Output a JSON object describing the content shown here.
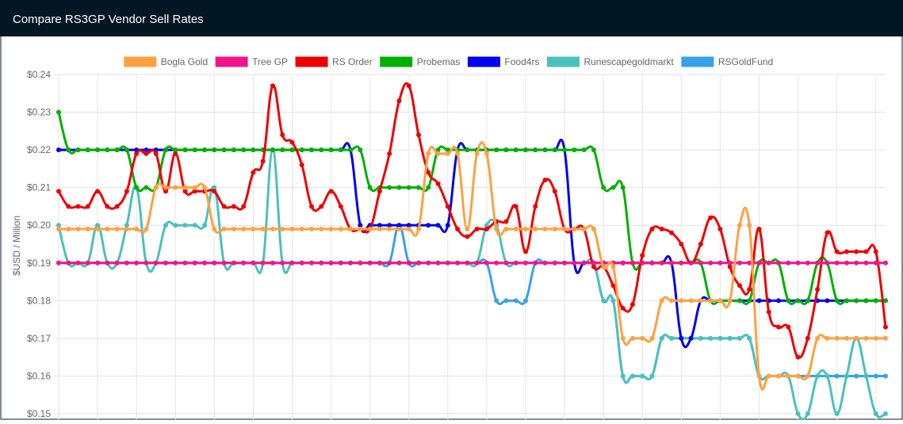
{
  "chart_data": {
    "type": "line",
    "title": "Compare RS3GP Vendor Sell Rates",
    "y_label": "$USD / Million",
    "ylim": [
      0.15,
      0.24
    ],
    "yticks": [
      {
        "value": 0.15,
        "label": "$0.15"
      },
      {
        "value": 0.16,
        "label": "$0.16"
      },
      {
        "value": 0.17,
        "label": "$0.17"
      },
      {
        "value": 0.18,
        "label": "$0.18"
      },
      {
        "value": 0.19,
        "label": "$0.19"
      },
      {
        "value": 0.2,
        "label": "$0.20"
      },
      {
        "value": 0.21,
        "label": "$0.21"
      },
      {
        "value": 0.22,
        "label": "$0.22"
      },
      {
        "value": 0.23,
        "label": "$0.23"
      },
      {
        "value": 0.24,
        "label": "$0.24"
      }
    ],
    "grid": true,
    "legend": "top",
    "series": [
      {
        "name": "Bogla Gold",
        "color": "#ffa040",
        "values": [
          0.199,
          0.199,
          0.199,
          0.199,
          0.199,
          0.199,
          0.199,
          0.199,
          0.199,
          0.199,
          0.21,
          0.21,
          0.21,
          0.21,
          0.21,
          0.21,
          0.199,
          0.199,
          0.199,
          0.199,
          0.199,
          0.199,
          0.199,
          0.199,
          0.199,
          0.199,
          0.199,
          0.199,
          0.199,
          0.199,
          0.199,
          0.199,
          0.199,
          0.199,
          0.199,
          0.199,
          0.199,
          0.199,
          0.219,
          0.219,
          0.219,
          0.219,
          0.199,
          0.219,
          0.219,
          0.199,
          0.199,
          0.199,
          0.199,
          0.199,
          0.199,
          0.199,
          0.199,
          0.199,
          0.199,
          0.199,
          0.189,
          0.189,
          0.17,
          0.17,
          0.17,
          0.17,
          0.18,
          0.18,
          0.18,
          0.18,
          0.18,
          0.18,
          0.18,
          0.18,
          0.2,
          0.2,
          0.16,
          0.16,
          0.16,
          0.16,
          0.16,
          0.16,
          0.17,
          0.17,
          0.17,
          0.17,
          0.17,
          0.17,
          0.17,
          0.17
        ]
      },
      {
        "name": "Tree GP",
        "color": "#f0168a",
        "values": [
          0.19,
          0.19,
          0.19,
          0.19,
          0.19,
          0.19,
          0.19,
          0.19,
          0.19,
          0.19,
          0.19,
          0.19,
          0.19,
          0.19,
          0.19,
          0.19,
          0.19,
          0.19,
          0.19,
          0.19,
          0.19,
          0.19,
          0.19,
          0.19,
          0.19,
          0.19,
          0.19,
          0.19,
          0.19,
          0.19,
          0.19,
          0.19,
          0.19,
          0.19,
          0.19,
          0.19,
          0.19,
          0.19,
          0.19,
          0.19,
          0.19,
          0.19,
          0.19,
          0.19,
          0.19,
          0.19,
          0.19,
          0.19,
          0.19,
          0.19,
          0.19,
          0.19,
          0.19,
          0.19,
          0.19,
          0.19,
          0.19,
          0.19,
          0.19,
          0.19,
          0.19,
          0.19,
          0.19,
          0.19,
          0.19,
          0.19,
          0.19,
          0.19,
          0.19,
          0.19,
          0.19,
          0.19,
          0.19,
          0.19,
          0.19,
          0.19,
          0.19,
          0.19,
          0.19,
          0.19,
          0.19,
          0.19,
          0.19,
          0.19,
          0.19,
          0.19
        ]
      },
      {
        "name": "RS Order",
        "color": "#ee0000",
        "values": [
          0.209,
          0.205,
          0.205,
          0.205,
          0.209,
          0.205,
          0.205,
          0.209,
          0.219,
          0.219,
          0.219,
          0.209,
          0.219,
          0.209,
          0.209,
          0.209,
          0.209,
          0.205,
          0.205,
          0.205,
          0.214,
          0.217,
          0.237,
          0.224,
          0.222,
          0.216,
          0.205,
          0.205,
          0.209,
          0.205,
          0.199,
          0.199,
          0.199,
          0.209,
          0.219,
          0.233,
          0.237,
          0.224,
          0.214,
          0.211,
          0.205,
          0.199,
          0.197,
          0.199,
          0.199,
          0.201,
          0.201,
          0.205,
          0.193,
          0.205,
          0.212,
          0.209,
          0.199,
          0.199,
          0.199,
          0.189,
          0.189,
          0.184,
          0.178,
          0.179,
          0.192,
          0.199,
          0.199,
          0.198,
          0.195,
          0.19,
          0.195,
          0.202,
          0.199,
          0.189,
          0.184,
          0.183,
          0.199,
          0.177,
          0.173,
          0.173,
          0.165,
          0.17,
          0.183,
          0.198,
          0.193,
          0.193,
          0.193,
          0.193,
          0.193,
          0.173
        ]
      },
      {
        "name": "Probemas",
        "color": "#00b000",
        "values": [
          0.23,
          0.22,
          0.22,
          0.22,
          0.22,
          0.22,
          0.22,
          0.22,
          0.21,
          0.21,
          0.21,
          0.22,
          0.22,
          0.22,
          0.22,
          0.22,
          0.22,
          0.22,
          0.22,
          0.22,
          0.22,
          0.22,
          0.22,
          0.22,
          0.22,
          0.22,
          0.22,
          0.22,
          0.22,
          0.22,
          0.22,
          0.22,
          0.21,
          0.21,
          0.21,
          0.21,
          0.21,
          0.21,
          0.21,
          0.22,
          0.22,
          0.22,
          0.22,
          0.22,
          0.22,
          0.22,
          0.22,
          0.22,
          0.22,
          0.22,
          0.22,
          0.22,
          0.22,
          0.22,
          0.22,
          0.22,
          0.21,
          0.21,
          0.21,
          0.19,
          0.19,
          0.19,
          0.19,
          0.19,
          0.19,
          0.19,
          0.19,
          0.18,
          0.18,
          0.18,
          0.18,
          0.18,
          0.19,
          0.19,
          0.19,
          0.18,
          0.18,
          0.18,
          0.19,
          0.19,
          0.18,
          0.18,
          0.18,
          0.18,
          0.18,
          0.18
        ]
      },
      {
        "name": "Food4rs",
        "color": "#0000ee",
        "values": [
          0.22,
          0.22,
          0.22,
          0.22,
          0.22,
          0.22,
          0.22,
          0.22,
          0.22,
          0.22,
          0.22,
          0.22,
          0.22,
          0.22,
          0.22,
          0.22,
          0.22,
          0.22,
          0.22,
          0.22,
          0.22,
          0.22,
          0.22,
          0.22,
          0.22,
          0.22,
          0.22,
          0.22,
          0.22,
          0.22,
          0.22,
          0.2,
          0.2,
          0.2,
          0.2,
          0.2,
          0.2,
          0.2,
          0.2,
          0.2,
          0.2,
          0.22,
          0.22,
          0.22,
          0.22,
          0.22,
          0.22,
          0.22,
          0.22,
          0.22,
          0.22,
          0.22,
          0.22,
          0.19,
          0.19,
          0.19,
          0.19,
          0.19,
          0.19,
          0.19,
          0.19,
          0.19,
          0.19,
          0.19,
          0.17,
          0.17,
          0.18,
          0.18,
          0.18,
          0.18,
          0.18,
          0.18,
          0.18,
          0.18,
          0.18,
          0.18,
          0.18,
          0.18,
          0.18,
          0.18,
          0.18,
          0.18,
          0.18,
          0.18,
          0.18,
          0.18
        ]
      },
      {
        "name": "Runescapegoldmarkt",
        "color": "#4bc0c0",
        "values": [
          0.2,
          0.19,
          0.19,
          0.19,
          0.2,
          0.19,
          0.19,
          0.2,
          0.21,
          0.19,
          0.19,
          0.2,
          0.2,
          0.2,
          0.2,
          0.2,
          0.21,
          0.19,
          0.19,
          0.19,
          0.19,
          0.19,
          0.22,
          0.19,
          0.19,
          0.19,
          0.19,
          0.19,
          0.19,
          0.19,
          0.19,
          0.19,
          0.19,
          0.19,
          0.19,
          0.19,
          0.19,
          0.19,
          0.19,
          0.19,
          0.19,
          0.19,
          0.19,
          0.19,
          0.2,
          0.2,
          0.19,
          0.19,
          0.19,
          0.19,
          0.19,
          0.19,
          0.19,
          0.19,
          0.19,
          0.19,
          0.18,
          0.18,
          0.16,
          0.16,
          0.16,
          0.16,
          0.17,
          0.17,
          0.17,
          0.17,
          0.17,
          0.17,
          0.17,
          0.17,
          0.17,
          0.17,
          0.16,
          0.16,
          0.16,
          0.16,
          0.15,
          0.15,
          0.16,
          0.16,
          0.15,
          0.16,
          0.17,
          0.16,
          0.15,
          0.15
        ]
      },
      {
        "name": "RSGoldFund",
        "color": "#36a2eb",
        "values": [
          0.19,
          0.19,
          0.19,
          0.19,
          0.19,
          0.19,
          0.19,
          0.19,
          0.19,
          0.19,
          0.19,
          0.19,
          0.19,
          0.19,
          0.19,
          0.19,
          0.19,
          0.19,
          0.19,
          0.19,
          0.19,
          0.19,
          0.19,
          0.19,
          0.19,
          0.19,
          0.19,
          0.19,
          0.19,
          0.19,
          0.19,
          0.19,
          0.19,
          0.19,
          0.19,
          0.2,
          0.19,
          0.19,
          0.19,
          0.19,
          0.19,
          0.19,
          0.19,
          0.19,
          0.19,
          0.18,
          0.18,
          0.18,
          0.18,
          0.19,
          0.19,
          0.19,
          0.19,
          0.19,
          0.19,
          0.19,
          0.18,
          0.18,
          0.16,
          0.16,
          0.16,
          0.16,
          0.17,
          0.17,
          0.17,
          0.17,
          0.17,
          0.17,
          0.17,
          0.17,
          0.17,
          0.17,
          0.16,
          0.16,
          0.16,
          0.16,
          0.16,
          0.16,
          0.16,
          0.16,
          0.16,
          0.16,
          0.16,
          0.16,
          0.16,
          0.16
        ]
      }
    ]
  }
}
